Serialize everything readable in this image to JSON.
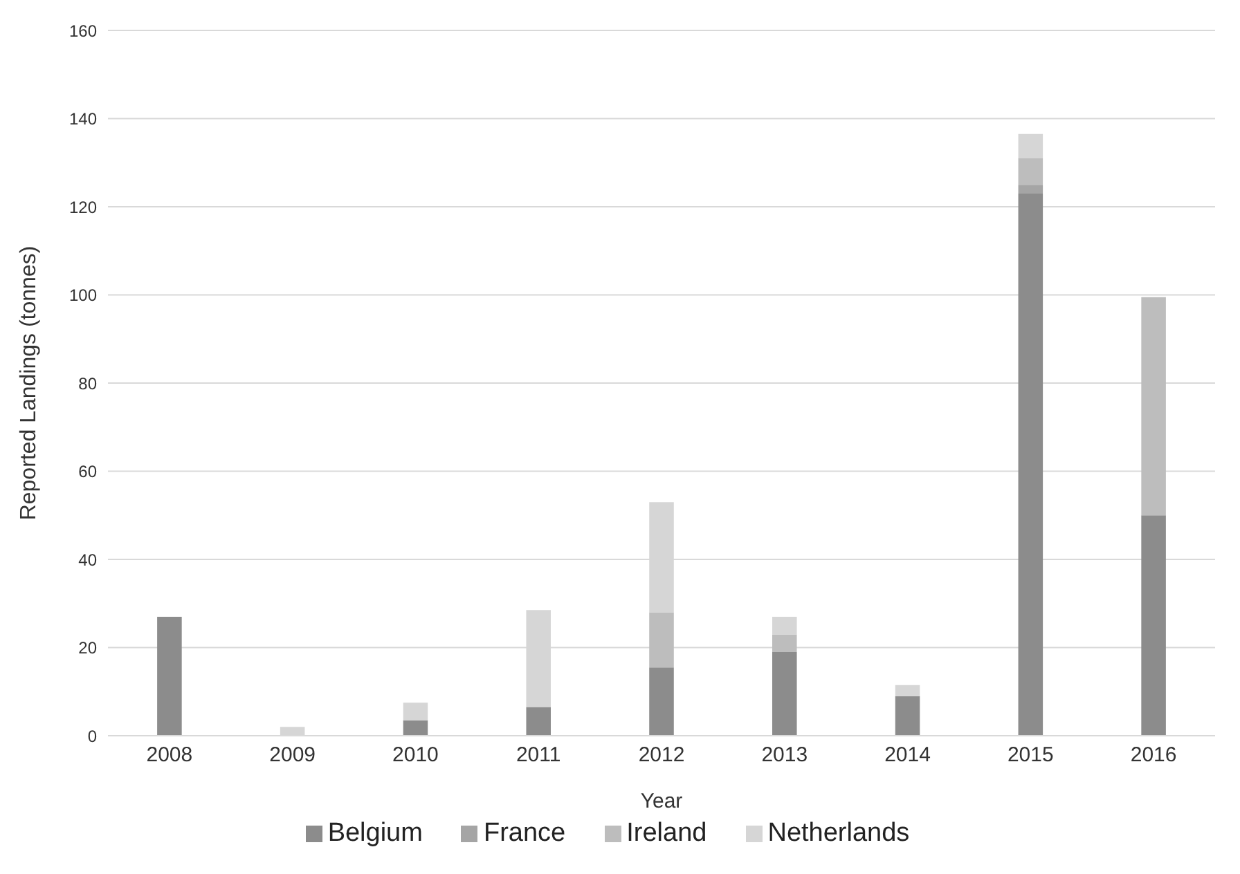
{
  "chart_data": {
    "type": "bar",
    "stacked": true,
    "xlabel": "Year",
    "ylabel": "Reported Landings (tonnes)",
    "categories": [
      "2008",
      "2009",
      "2010",
      "2011",
      "2012",
      "2013",
      "2014",
      "2015",
      "2016"
    ],
    "series": [
      {
        "name": "Belgium",
        "color": "#8c8c8c",
        "values": [
          27,
          0,
          3.5,
          6.5,
          15.5,
          19,
          9,
          123,
          50
        ]
      },
      {
        "name": "France",
        "color": "#a5a5a5",
        "values": [
          0,
          0,
          0,
          0,
          0,
          0,
          0,
          2,
          0
        ]
      },
      {
        "name": "Ireland",
        "color": "#bdbdbd",
        "values": [
          0,
          null,
          0,
          0,
          12.5,
          4,
          0,
          6,
          49.5
        ]
      },
      {
        "name": "Netherlands",
        "color": "#d6d6d6",
        "values": [
          0,
          2,
          4,
          22,
          25,
          4,
          2.5,
          5.5,
          0
        ]
      }
    ],
    "ylim": [
      0,
      160
    ],
    "yticks": [
      0,
      20,
      40,
      60,
      80,
      100,
      120,
      140,
      160
    ],
    "grid": "y",
    "legend": "bottom"
  }
}
